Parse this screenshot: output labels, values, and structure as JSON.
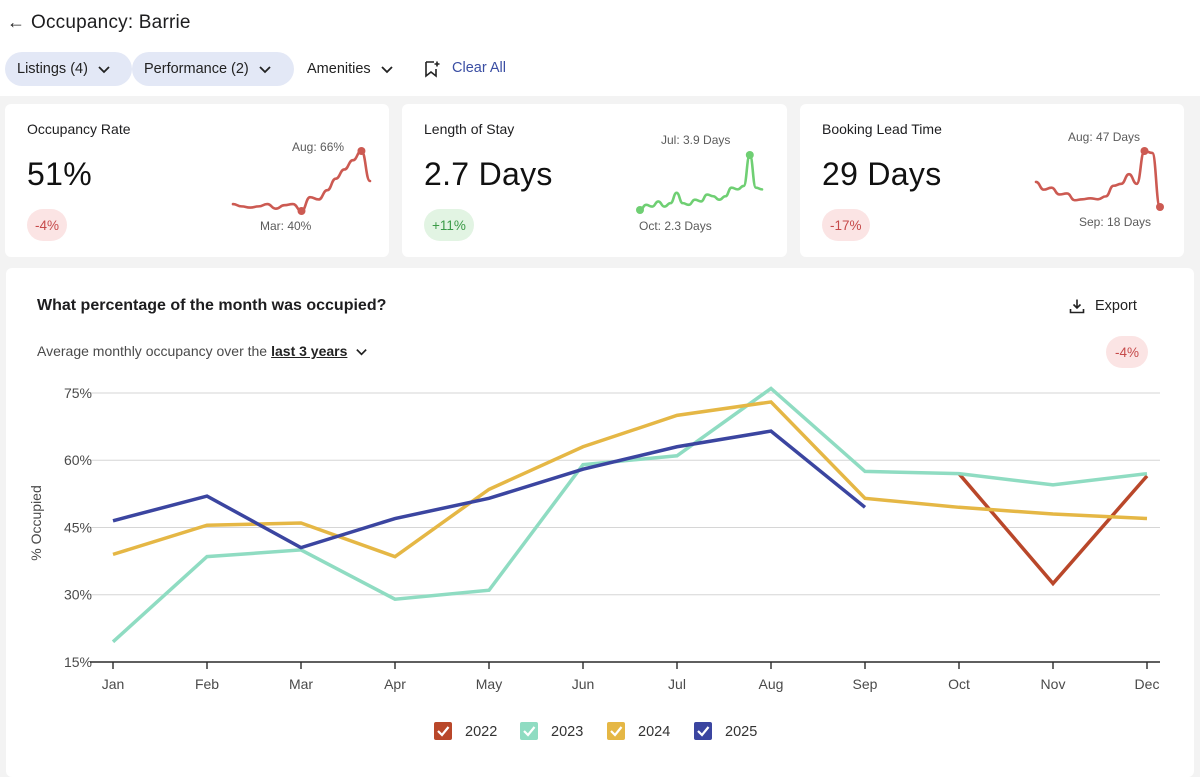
{
  "header": {
    "title": "Occupancy:  Barrie",
    "back_icon": "arrow-left-icon"
  },
  "filters": {
    "listings": "Listings (4)",
    "performance": "Performance (2)",
    "amenities": "Amenities",
    "clear_all": "Clear All"
  },
  "cards": [
    {
      "label": "Occupancy Rate",
      "value": "51%",
      "change": "-4%",
      "trend": "negative",
      "color": "#cc5a52",
      "spark_values": [
        43,
        42,
        41.5,
        42,
        43,
        41,
        42.5,
        43,
        40,
        46,
        45,
        49,
        54,
        58,
        62,
        66,
        53
      ],
      "max_label": "Aug: 66%",
      "min_label": "Mar: 40%"
    },
    {
      "label": "Length of Stay",
      "value": "2.7 Days",
      "change": "+11%",
      "trend": "positive",
      "color": "#6fcf73",
      "spark_values": [
        2.3,
        2.45,
        2.4,
        2.55,
        2.4,
        2.5,
        2.8,
        2.5,
        2.45,
        2.6,
        2.55,
        2.75,
        2.7,
        2.6,
        2.7,
        2.95,
        2.9,
        3.0,
        3.9,
        2.95,
        2.9
      ],
      "max_label": "Jul: 3.9 Days",
      "min_label": "Oct: 2.3 Days"
    },
    {
      "label": "Booking Lead Time",
      "value": "29 Days",
      "change": "-17%",
      "trend": "negative",
      "color": "#cc5a52",
      "spark_values": [
        31,
        27,
        28,
        24.5,
        25,
        21.5,
        22,
        22.5,
        22,
        23.5,
        29,
        30,
        35,
        30,
        47,
        46,
        18
      ],
      "max_label": "Aug: 47 Days",
      "min_label": "Sep: 18 Days"
    }
  ],
  "panel": {
    "title": "What percentage of the month was occupied?",
    "subtitle": "Average monthly occupancy over the",
    "period": "last 3 years",
    "export_label": "Export",
    "change": "-4%"
  },
  "chart_data": {
    "type": "line",
    "title": "What percentage of the month was occupied?",
    "ylabel": "% Occupied",
    "xlabel": "",
    "ylim": [
      15,
      77
    ],
    "yticks": [
      15,
      30,
      45,
      60,
      75
    ],
    "ytick_labels": [
      "15%",
      "30%",
      "45%",
      "60%",
      "75%"
    ],
    "categories": [
      "Jan",
      "Feb",
      "Mar",
      "Apr",
      "May",
      "Jun",
      "Jul",
      "Aug",
      "Sep",
      "Oct",
      "Nov",
      "Dec"
    ],
    "legend_position": "bottom-center",
    "series": [
      {
        "name": "2022",
        "color": "#b9472a",
        "values": [
          null,
          null,
          null,
          null,
          null,
          null,
          null,
          null,
          null,
          57.0,
          32.5,
          56.5
        ]
      },
      {
        "name": "2023",
        "color": "#8fdcc2",
        "values": [
          19.5,
          38.5,
          40.0,
          29.0,
          31.0,
          59.0,
          61.0,
          76.0,
          57.5,
          57.0,
          54.5,
          57.0
        ]
      },
      {
        "name": "2024",
        "color": "#e5b745",
        "values": [
          39.0,
          45.5,
          46.0,
          38.5,
          53.5,
          63.0,
          70.0,
          73.0,
          51.5,
          49.5,
          48.0,
          47.0
        ]
      },
      {
        "name": "2025",
        "color": "#3b45a0",
        "values": [
          46.5,
          52.0,
          40.5,
          47.0,
          51.5,
          58.0,
          63.0,
          66.5,
          49.5,
          null,
          null,
          null
        ]
      }
    ]
  }
}
